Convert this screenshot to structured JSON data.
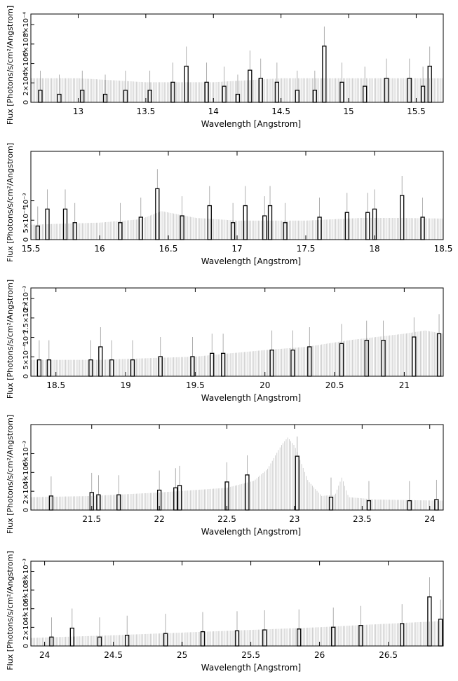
{
  "figure": {
    "xlabel": "Wavelength [Angstrom]",
    "ylabel": "Flux [Photons/s/cm²/Angstrom]",
    "colors": {
      "data": "#000000",
      "model": "#bdbdbd",
      "frame": "#000000"
    }
  },
  "chart_data": [
    {
      "type": "bar",
      "xlim": [
        12.65,
        15.7
      ],
      "ylim": [
        0,
        0.0011
      ],
      "xticks": [
        13,
        13.5,
        14,
        14.5,
        15,
        15.5
      ],
      "ytick_labels": [
        "0",
        "2×10⁻⁴",
        "4×10⁻⁴",
        "6×10⁻⁴",
        "8×10⁻⁴"
      ],
      "model": [
        [
          12.65,
          0.0003
        ],
        [
          13.0,
          0.0003
        ],
        [
          13.5,
          0.00025
        ],
        [
          14.0,
          0.00025
        ],
        [
          14.5,
          0.0003
        ],
        [
          15.0,
          0.0003
        ],
        [
          15.3,
          0.0003
        ],
        [
          15.7,
          0.0003
        ]
      ],
      "data": [
        [
          12.72,
          0.00015
        ],
        [
          12.86,
          0.0001
        ],
        [
          13.03,
          0.00015
        ],
        [
          13.2,
          0.0001
        ],
        [
          13.35,
          0.00015
        ],
        [
          13.53,
          0.00015
        ],
        [
          13.7,
          0.00025
        ],
        [
          13.8,
          0.00045
        ],
        [
          13.95,
          0.00025
        ],
        [
          14.08,
          0.0002
        ],
        [
          14.18,
          0.0001
        ],
        [
          14.27,
          0.0004
        ],
        [
          14.35,
          0.0003
        ],
        [
          14.47,
          0.00025
        ],
        [
          14.62,
          0.00015
        ],
        [
          14.75,
          0.00015
        ],
        [
          14.82,
          0.0007
        ],
        [
          14.95,
          0.00025
        ],
        [
          15.12,
          0.0002
        ],
        [
          15.28,
          0.0003
        ],
        [
          15.45,
          0.0003
        ],
        [
          15.55,
          0.0002
        ],
        [
          15.6,
          0.00045
        ]
      ]
    },
    {
      "type": "bar",
      "xlim": [
        15.5,
        18.5
      ],
      "ylim": [
        0,
        0.0013
      ],
      "xticks": [
        15.5,
        16,
        16.5,
        17,
        17.5,
        18,
        18.5
      ],
      "ytick_labels": [
        "0",
        "5×10⁻⁴",
        "10⁻³"
      ],
      "model": [
        [
          15.5,
          0.00022
        ],
        [
          16.0,
          0.00025
        ],
        [
          16.3,
          0.0003
        ],
        [
          16.45,
          0.00042
        ],
        [
          16.7,
          0.00032
        ],
        [
          17.0,
          0.00028
        ],
        [
          17.5,
          0.00028
        ],
        [
          17.9,
          0.00032
        ],
        [
          18.2,
          0.00032
        ],
        [
          18.5,
          0.00031
        ]
      ],
      "data": [
        [
          15.55,
          0.0002
        ],
        [
          15.62,
          0.00045
        ],
        [
          15.75,
          0.00045
        ],
        [
          15.82,
          0.00025
        ],
        [
          16.15,
          0.00025
        ],
        [
          16.3,
          0.00033
        ],
        [
          16.42,
          0.00075
        ],
        [
          16.6,
          0.00035
        ],
        [
          16.8,
          0.0005
        ],
        [
          16.97,
          0.00025
        ],
        [
          17.06,
          0.0005
        ],
        [
          17.2,
          0.00035
        ],
        [
          17.24,
          0.0005
        ],
        [
          17.35,
          0.00025
        ],
        [
          17.6,
          0.00033
        ],
        [
          17.8,
          0.0004
        ],
        [
          17.95,
          0.0004
        ],
        [
          18.0,
          0.00045
        ],
        [
          18.2,
          0.00065
        ],
        [
          18.35,
          0.00033
        ]
      ]
    },
    {
      "type": "bar",
      "xlim": [
        18.32,
        21.28
      ],
      "ylim": [
        0,
        0.0027
      ],
      "xticks": [
        18.5,
        19,
        19.5,
        20,
        20.5,
        21
      ],
      "ytick_labels": [
        "0",
        "5×10⁻⁴",
        "10⁻³",
        "1.5×10⁻³",
        "2×10⁻³"
      ],
      "model": [
        [
          18.32,
          0.0005
        ],
        [
          18.8,
          0.0005
        ],
        [
          19.5,
          0.0006
        ],
        [
          20.0,
          0.0008
        ],
        [
          20.3,
          0.0009
        ],
        [
          20.6,
          0.0011
        ],
        [
          21.0,
          0.0013
        ],
        [
          21.15,
          0.0014
        ],
        [
          21.28,
          0.0013
        ]
      ],
      "data": [
        [
          18.38,
          0.0005
        ],
        [
          18.45,
          0.0005
        ],
        [
          18.75,
          0.0005
        ],
        [
          18.82,
          0.0009
        ],
        [
          18.9,
          0.0005
        ],
        [
          19.05,
          0.0005
        ],
        [
          19.25,
          0.0006
        ],
        [
          19.48,
          0.0006
        ],
        [
          19.62,
          0.0007
        ],
        [
          19.7,
          0.0007
        ],
        [
          20.05,
          0.0008
        ],
        [
          20.2,
          0.0008
        ],
        [
          20.32,
          0.0009
        ],
        [
          20.55,
          0.001
        ],
        [
          20.73,
          0.0011
        ],
        [
          20.85,
          0.0011
        ],
        [
          21.07,
          0.0012
        ],
        [
          21.25,
          0.0013
        ]
      ]
    },
    {
      "type": "bar",
      "xlim": [
        21.05,
        24.1
      ],
      "ylim": [
        0,
        0.0073
      ],
      "xticks": [
        21.5,
        22,
        22.5,
        23,
        23.5,
        24
      ],
      "ytick_labels": [
        "0",
        "2×10⁻³",
        "4×10⁻³",
        "6×10⁻³"
      ],
      "model": [
        [
          21.05,
          0.0011
        ],
        [
          21.5,
          0.0012
        ],
        [
          22.0,
          0.0015
        ],
        [
          22.5,
          0.0019
        ],
        [
          22.7,
          0.0025
        ],
        [
          22.8,
          0.0035
        ],
        [
          22.9,
          0.0055
        ],
        [
          22.95,
          0.0062
        ],
        [
          23.0,
          0.0055
        ],
        [
          23.1,
          0.0025
        ],
        [
          23.2,
          0.0012
        ],
        [
          23.3,
          0.0013
        ],
        [
          23.35,
          0.0028
        ],
        [
          23.4,
          0.0011
        ],
        [
          23.6,
          0.0009
        ],
        [
          24.1,
          0.0008
        ]
      ],
      "data": [
        [
          21.2,
          0.0012
        ],
        [
          21.5,
          0.0015
        ],
        [
          21.55,
          0.0013
        ],
        [
          21.7,
          0.0013
        ],
        [
          22.0,
          0.0017
        ],
        [
          22.12,
          0.0019
        ],
        [
          22.15,
          0.0021
        ],
        [
          22.5,
          0.0024
        ],
        [
          22.65,
          0.003
        ],
        [
          23.02,
          0.0046
        ],
        [
          23.27,
          0.0011
        ],
        [
          23.55,
          0.0008
        ],
        [
          23.85,
          0.0008
        ],
        [
          24.05,
          0.0009
        ]
      ]
    },
    {
      "type": "bar",
      "xlim": [
        23.9,
        26.9
      ],
      "ylim": [
        0,
        0.0095
      ],
      "xticks": [
        24,
        24.5,
        25,
        25.5,
        26,
        26.5
      ],
      "ytick_labels": [
        "0",
        "2×10⁻³",
        "4×10⁻³",
        "6×10⁻³",
        "8×10⁻³"
      ],
      "model": [
        [
          23.9,
          0.0009
        ],
        [
          24.5,
          0.0012
        ],
        [
          25.0,
          0.0015
        ],
        [
          25.5,
          0.0018
        ],
        [
          26.0,
          0.0021
        ],
        [
          26.5,
          0.0025
        ],
        [
          26.9,
          0.0028
        ]
      ],
      "data": [
        [
          24.05,
          0.001
        ],
        [
          24.2,
          0.002
        ],
        [
          24.4,
          0.001
        ],
        [
          24.6,
          0.0012
        ],
        [
          24.88,
          0.0014
        ],
        [
          25.15,
          0.0016
        ],
        [
          25.4,
          0.0017
        ],
        [
          25.6,
          0.0018
        ],
        [
          25.85,
          0.0019
        ],
        [
          26.1,
          0.0021
        ],
        [
          26.3,
          0.0023
        ],
        [
          26.6,
          0.0025
        ],
        [
          26.8,
          0.0055
        ],
        [
          26.88,
          0.003
        ]
      ]
    }
  ]
}
